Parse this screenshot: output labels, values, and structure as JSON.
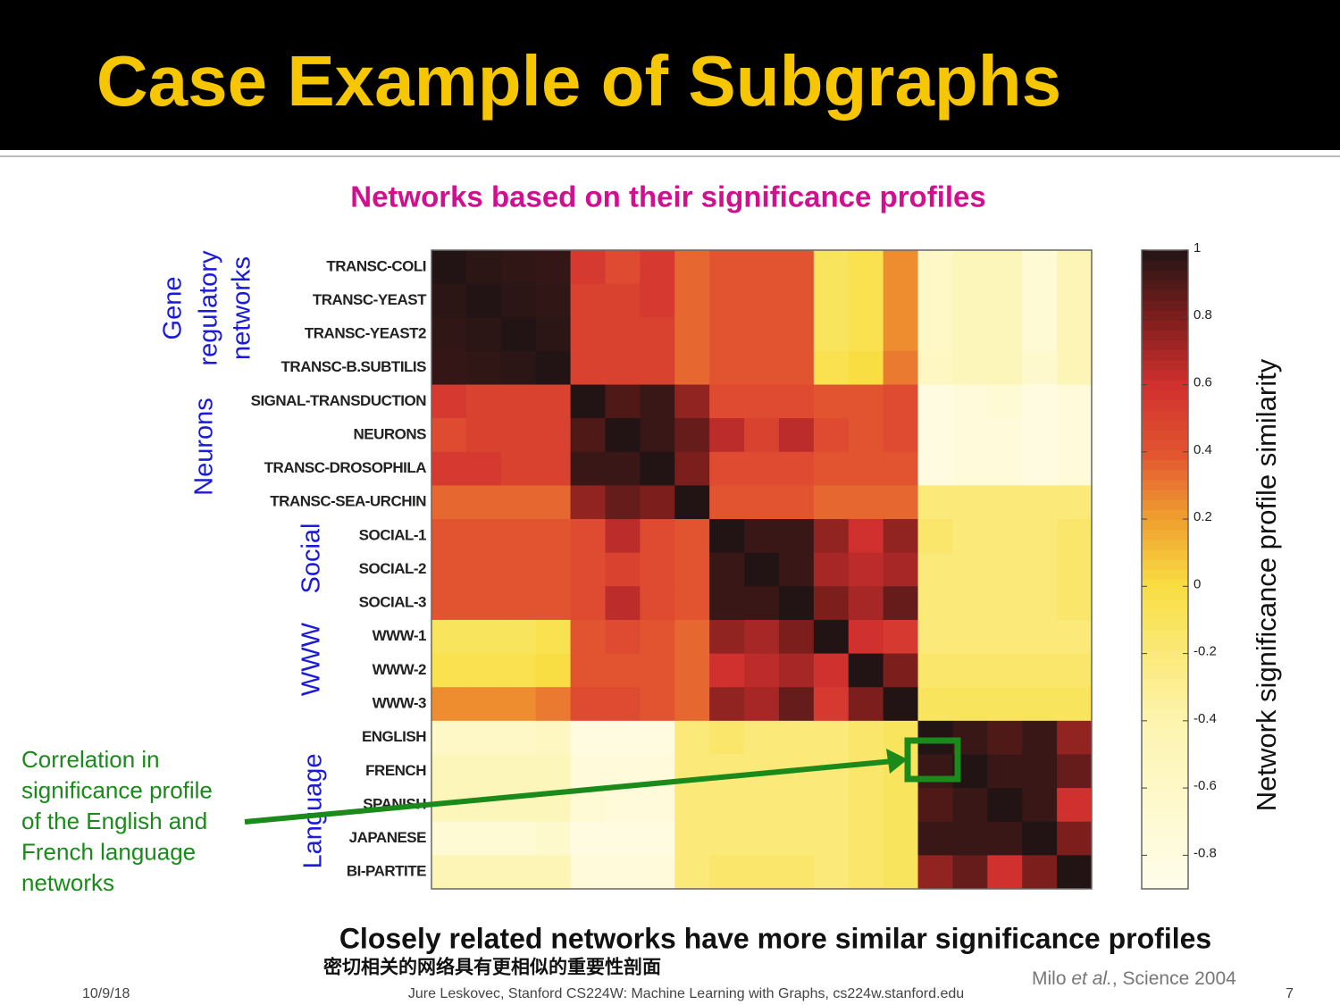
{
  "slide": {
    "title": "Case Example of Subgraphs",
    "caption": "Closely related networks have more similar significance profiles",
    "caption_translation": "密切相关的网络具有更相似的重要性剖面",
    "citation": [
      "Milo ",
      "et al.",
      ", Science 2004"
    ],
    "footer": {
      "date": "10/9/18",
      "center": "Jure Leskovec, Stanford CS224W: Machine Learning with Graphs, cs224w.stanford.edu",
      "page": "7"
    },
    "annotation": [
      "Correlation in",
      "significance profile",
      "of the English and",
      "French language",
      "networks"
    ]
  },
  "chart_data": {
    "type": "heatmap",
    "title": "Networks based on their significance profiles",
    "colorbar_label": "Network significance profile similarity",
    "categories": [
      "TRANSC-COLI",
      "TRANSC-YEAST",
      "TRANSC-YEAST2",
      "TRANSC-B.SUBTILIS",
      "SIGNAL-TRANSDUCTION",
      "NEURONS",
      "TRANSC-DROSOPHILA",
      "TRANSC-SEA-URCHIN",
      "SOCIAL-1",
      "SOCIAL-2",
      "SOCIAL-3",
      "WWW-1",
      "WWW-2",
      "WWW-3",
      "ENGLISH",
      "FRENCH",
      "SPANISH",
      "JAPANESE",
      "BI-PARTITE"
    ],
    "groups": [
      {
        "lines": [
          "Gene",
          "regulatory",
          "networks"
        ]
      },
      {
        "lines": [
          "Neurons"
        ]
      },
      {
        "lines": [
          "Social"
        ]
      },
      {
        "lines": [
          "WWW"
        ]
      },
      {
        "lines": [
          "Language"
        ]
      }
    ],
    "values": [
      [
        1,
        0.98,
        0.97,
        0.96,
        0.55,
        0.45,
        0.55,
        0.35,
        0.4,
        0.4,
        0.4,
        -0.1,
        -0.05,
        0.25,
        -0.6,
        -0.5,
        -0.5,
        -0.7,
        -0.45
      ],
      [
        0.98,
        1,
        0.98,
        0.97,
        0.5,
        0.5,
        0.55,
        0.35,
        0.4,
        0.4,
        0.4,
        -0.1,
        -0.05,
        0.25,
        -0.6,
        -0.5,
        -0.5,
        -0.7,
        -0.45
      ],
      [
        0.97,
        0.98,
        1,
        0.98,
        0.5,
        0.5,
        0.5,
        0.35,
        0.4,
        0.4,
        0.4,
        -0.1,
        -0.05,
        0.25,
        -0.6,
        -0.5,
        -0.5,
        -0.7,
        -0.45
      ],
      [
        0.96,
        0.97,
        0.98,
        1,
        0.5,
        0.5,
        0.5,
        0.35,
        0.4,
        0.4,
        0.4,
        -0.05,
        0,
        0.3,
        -0.55,
        -0.5,
        -0.5,
        -0.65,
        -0.45
      ],
      [
        0.55,
        0.5,
        0.5,
        0.5,
        1,
        0.9,
        0.95,
        0.75,
        0.45,
        0.45,
        0.45,
        0.4,
        0.4,
        0.45,
        -0.8,
        -0.75,
        -0.7,
        -0.8,
        -0.75
      ],
      [
        0.45,
        0.5,
        0.5,
        0.5,
        0.9,
        1,
        0.95,
        0.85,
        0.65,
        0.5,
        0.65,
        0.45,
        0.4,
        0.45,
        -0.8,
        -0.75,
        -0.75,
        -0.8,
        -0.75
      ],
      [
        0.55,
        0.55,
        0.5,
        0.5,
        0.95,
        0.95,
        1,
        0.8,
        0.45,
        0.45,
        0.45,
        0.4,
        0.4,
        0.4,
        -0.8,
        -0.75,
        -0.75,
        -0.8,
        -0.75
      ],
      [
        0.35,
        0.35,
        0.35,
        0.35,
        0.75,
        0.85,
        0.8,
        1,
        0.4,
        0.4,
        0.4,
        0.35,
        0.35,
        0.35,
        -0.2,
        -0.2,
        -0.2,
        -0.2,
        -0.2
      ],
      [
        0.4,
        0.4,
        0.4,
        0.4,
        0.45,
        0.65,
        0.45,
        0.4,
        1,
        0.95,
        0.95,
        0.75,
        0.6,
        0.75,
        -0.15,
        -0.2,
        -0.2,
        -0.2,
        -0.15
      ],
      [
        0.4,
        0.4,
        0.4,
        0.4,
        0.45,
        0.5,
        0.45,
        0.4,
        0.95,
        1,
        0.95,
        0.7,
        0.65,
        0.7,
        -0.2,
        -0.2,
        -0.2,
        -0.2,
        -0.15
      ],
      [
        0.4,
        0.4,
        0.4,
        0.4,
        0.45,
        0.65,
        0.45,
        0.4,
        0.95,
        0.95,
        1,
        0.8,
        0.7,
        0.85,
        -0.2,
        -0.2,
        -0.2,
        -0.2,
        -0.15
      ],
      [
        -0.1,
        -0.1,
        -0.1,
        -0.05,
        0.4,
        0.45,
        0.4,
        0.35,
        0.75,
        0.7,
        0.8,
        1,
        0.6,
        0.55,
        -0.2,
        -0.2,
        -0.2,
        -0.2,
        -0.2
      ],
      [
        -0.05,
        -0.05,
        -0.05,
        0,
        0.4,
        0.4,
        0.4,
        0.35,
        0.6,
        0.65,
        0.7,
        0.6,
        1,
        0.8,
        -0.15,
        -0.15,
        -0.15,
        -0.15,
        -0.15
      ],
      [
        0.25,
        0.25,
        0.25,
        0.3,
        0.45,
        0.45,
        0.4,
        0.35,
        0.75,
        0.7,
        0.85,
        0.55,
        0.8,
        1,
        -0.1,
        -0.1,
        -0.1,
        -0.1,
        -0.1
      ],
      [
        -0.6,
        -0.6,
        -0.6,
        -0.55,
        -0.8,
        -0.8,
        -0.8,
        -0.2,
        -0.15,
        -0.2,
        -0.2,
        -0.2,
        -0.15,
        -0.1,
        1,
        0.95,
        0.9,
        0.95,
        0.75
      ],
      [
        -0.5,
        -0.5,
        -0.5,
        -0.5,
        -0.75,
        -0.75,
        -0.75,
        -0.2,
        -0.2,
        -0.2,
        -0.2,
        -0.2,
        -0.15,
        -0.1,
        0.95,
        1,
        0.95,
        0.95,
        0.85
      ],
      [
        -0.5,
        -0.5,
        -0.5,
        -0.5,
        -0.7,
        -0.75,
        -0.75,
        -0.2,
        -0.2,
        -0.2,
        -0.2,
        -0.2,
        -0.15,
        -0.1,
        0.9,
        0.95,
        1,
        0.95,
        0.6
      ],
      [
        -0.7,
        -0.7,
        -0.7,
        -0.65,
        -0.8,
        -0.8,
        -0.8,
        -0.2,
        -0.2,
        -0.2,
        -0.2,
        -0.2,
        -0.15,
        -0.1,
        0.95,
        0.95,
        0.95,
        1,
        0.8
      ],
      [
        -0.45,
        -0.45,
        -0.45,
        -0.45,
        -0.75,
        -0.75,
        -0.75,
        -0.2,
        -0.15,
        -0.15,
        -0.15,
        -0.2,
        -0.15,
        -0.1,
        0.75,
        0.85,
        0.6,
        0.8,
        1
      ]
    ],
    "clim": [
      -0.9,
      1
    ],
    "cticks": [
      -0.8,
      -0.6,
      -0.4,
      -0.2,
      0,
      0.2,
      0.4,
      0.6,
      0.8,
      1
    ]
  }
}
